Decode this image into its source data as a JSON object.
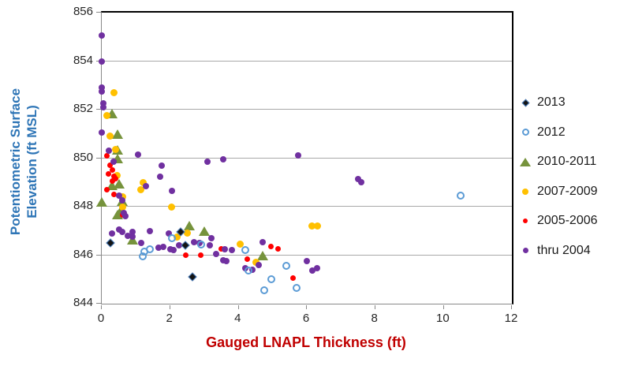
{
  "chart_data": {
    "type": "scatter",
    "title": "",
    "xlabel": "Gauged LNAPL Thickness (ft)",
    "ylabel_line1": "Potentiometric Surface",
    "ylabel_line2": "Elevation (ft MSL)",
    "xlabel_color": "#C00000",
    "ylabel_color": "#2E75B6",
    "xlim": [
      0,
      12
    ],
    "ylim": [
      844,
      856
    ],
    "x_ticks": [
      0,
      2,
      4,
      6,
      8,
      10,
      12
    ],
    "y_ticks": [
      856,
      854,
      852,
      850,
      848,
      846,
      844
    ],
    "grid": "horizontal-only",
    "gridline_color": "#A8A8A8",
    "legend_position": "right",
    "series": [
      {
        "name": "2013",
        "marker": "diamond",
        "color": "#141414",
        "edge_color": "#4A7FC1",
        "size": 8,
        "points": [
          [
            0.25,
            846.5
          ],
          [
            2.3,
            846.95
          ],
          [
            2.45,
            846.4
          ],
          [
            2.65,
            845.1
          ]
        ]
      },
      {
        "name": "2012",
        "marker": "open-circle",
        "color": "#5B9BD5",
        "size": 10,
        "points": [
          [
            1.2,
            845.95
          ],
          [
            1.25,
            846.15
          ],
          [
            1.4,
            846.25
          ],
          [
            2.05,
            846.7
          ],
          [
            2.9,
            846.45
          ],
          [
            4.2,
            846.2
          ],
          [
            4.3,
            845.35
          ],
          [
            4.75,
            844.55
          ],
          [
            4.95,
            845.0
          ],
          [
            5.4,
            845.55
          ],
          [
            5.7,
            844.65
          ],
          [
            10.5,
            848.45
          ]
        ]
      },
      {
        "name": "2010-2011",
        "marker": "triangle",
        "color": "#76933C",
        "size": 14,
        "points": [
          [
            0.3,
            851.8
          ],
          [
            0.45,
            850.95
          ],
          [
            0.45,
            850.3
          ],
          [
            0.45,
            849.95
          ],
          [
            0.3,
            848.85
          ],
          [
            0.5,
            848.9
          ],
          [
            0,
            848.15
          ],
          [
            0.6,
            848.2
          ],
          [
            0.55,
            847.8
          ],
          [
            0.45,
            847.65
          ],
          [
            0.9,
            846.6
          ],
          [
            2.55,
            847.2
          ],
          [
            3.0,
            846.95
          ],
          [
            4.7,
            845.95
          ]
        ]
      },
      {
        "name": "2007-2009",
        "marker": "circle",
        "color": "#FFC000",
        "size": 9,
        "points": [
          [
            0.35,
            852.7
          ],
          [
            0.15,
            851.75
          ],
          [
            0.25,
            850.9
          ],
          [
            0.4,
            850.35
          ],
          [
            0.45,
            849.3
          ],
          [
            0.6,
            848.4
          ],
          [
            0.6,
            848.0
          ],
          [
            1.15,
            848.7
          ],
          [
            1.2,
            849.0
          ],
          [
            2.05,
            848.0
          ],
          [
            2.2,
            846.75
          ],
          [
            2.5,
            846.9
          ],
          [
            4.05,
            846.45
          ],
          [
            4.5,
            845.7
          ],
          [
            6.15,
            847.2
          ],
          [
            6.3,
            847.2
          ]
        ]
      },
      {
        "name": "2005-2006",
        "marker": "circle",
        "color": "#FF0000",
        "size": 7,
        "points": [
          [
            0.15,
            850.1
          ],
          [
            0.25,
            849.7
          ],
          [
            0.3,
            849.5
          ],
          [
            0.2,
            849.35
          ],
          [
            0.35,
            849.25
          ],
          [
            0.4,
            849.15
          ],
          [
            0.3,
            849.05
          ],
          [
            0.15,
            848.7
          ],
          [
            0.35,
            848.5
          ],
          [
            0.6,
            847.65
          ],
          [
            2.45,
            846.0
          ],
          [
            2.9,
            846.0
          ],
          [
            3.5,
            846.25
          ],
          [
            4.25,
            845.85
          ],
          [
            4.95,
            846.35
          ],
          [
            5.15,
            846.25
          ],
          [
            5.6,
            845.05
          ]
        ]
      },
      {
        "name": "thru 2004",
        "marker": "circle",
        "color": "#7030A0",
        "size": 8,
        "points": [
          [
            0,
            855.05
          ],
          [
            0,
            854.0
          ],
          [
            0,
            852.9
          ],
          [
            0,
            852.75
          ],
          [
            0.05,
            852.25
          ],
          [
            0.05,
            852.1
          ],
          [
            0,
            851.05
          ],
          [
            0.2,
            850.3
          ],
          [
            1.05,
            850.15
          ],
          [
            0.35,
            849.85
          ],
          [
            1.75,
            849.7
          ],
          [
            1.7,
            849.25
          ],
          [
            3.1,
            849.85
          ],
          [
            3.55,
            849.95
          ],
          [
            5.75,
            850.1
          ],
          [
            7.5,
            849.15
          ],
          [
            7.6,
            849.0
          ],
          [
            1.3,
            848.85
          ],
          [
            2.05,
            848.65
          ],
          [
            0.5,
            848.45
          ],
          [
            0.6,
            848.25
          ],
          [
            0.65,
            847.75
          ],
          [
            0.7,
            847.6
          ],
          [
            0.5,
            847.05
          ],
          [
            0.3,
            846.9
          ],
          [
            0.6,
            846.95
          ],
          [
            0.9,
            846.95
          ],
          [
            0.9,
            846.75
          ],
          [
            0.75,
            846.8
          ],
          [
            1.15,
            846.5
          ],
          [
            1.4,
            847.0
          ],
          [
            1.95,
            846.9
          ],
          [
            1.65,
            846.3
          ],
          [
            1.8,
            846.35
          ],
          [
            2.0,
            846.25
          ],
          [
            2.1,
            846.2
          ],
          [
            2.25,
            846.4
          ],
          [
            2.7,
            846.55
          ],
          [
            2.85,
            846.5
          ],
          [
            3.15,
            846.4
          ],
          [
            3.2,
            846.7
          ],
          [
            3.35,
            846.05
          ],
          [
            3.6,
            846.25
          ],
          [
            3.8,
            846.2
          ],
          [
            3.55,
            845.8
          ],
          [
            3.65,
            845.75
          ],
          [
            4.2,
            845.45
          ],
          [
            4.4,
            845.4
          ],
          [
            4.6,
            845.6
          ],
          [
            4.7,
            846.55
          ],
          [
            6.0,
            845.75
          ],
          [
            6.15,
            845.35
          ],
          [
            6.3,
            845.45
          ]
        ]
      }
    ]
  }
}
